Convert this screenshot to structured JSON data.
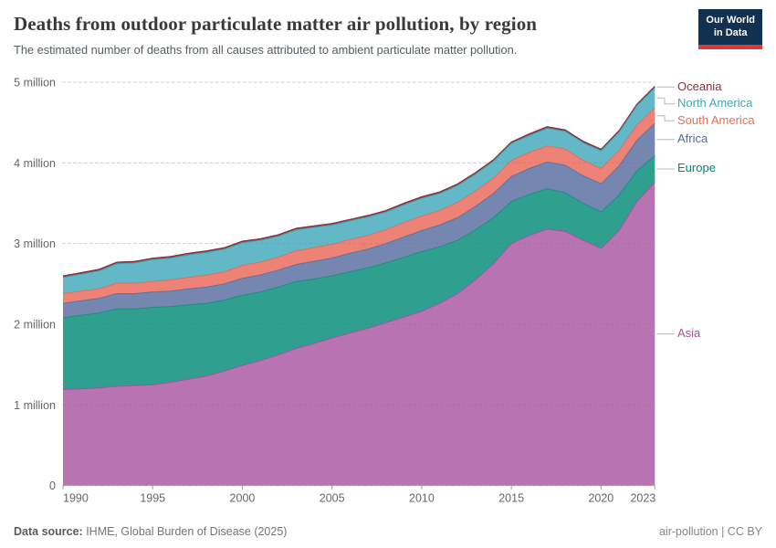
{
  "header": {
    "title": "Deaths from outdoor particulate matter air pollution, by region",
    "subtitle": "The estimated number of deaths from all causes attributed to ambient particulate matter pollution.",
    "logo": {
      "line1": "Our World",
      "line2": "in Data",
      "bg_color": "#12304f",
      "accent_color": "#d93a32"
    }
  },
  "footer": {
    "source_label": "Data source:",
    "source_text": " IHME, Global Burden of Disease (2025)",
    "note_right": "air-pollution | CC BY"
  },
  "chart_data": {
    "type": "area",
    "stacked": true,
    "title": "Deaths from outdoor particulate matter air pollution, by region",
    "unit": "deaths per year (millions)",
    "xlabel": "",
    "ylabel": "",
    "ylim": [
      0,
      5
    ],
    "grid": "dashed horizontal",
    "legend_position": "right",
    "x": [
      1990,
      1991,
      1992,
      1993,
      1994,
      1995,
      1996,
      1997,
      1998,
      1999,
      2000,
      2001,
      2002,
      2003,
      2004,
      2005,
      2006,
      2007,
      2008,
      2009,
      2010,
      2011,
      2012,
      2013,
      2014,
      2015,
      2016,
      2017,
      2018,
      2019,
      2020,
      2021,
      2022,
      2023
    ],
    "xticks": [
      "1990",
      "1995",
      "2000",
      "2005",
      "2010",
      "2015",
      "2020",
      "2023"
    ],
    "yticks": [
      {
        "value": 0,
        "label": "0"
      },
      {
        "value": 1,
        "label": "1 million"
      },
      {
        "value": 2,
        "label": "2 million"
      },
      {
        "value": 3,
        "label": "3 million"
      },
      {
        "value": 4,
        "label": "4 million"
      },
      {
        "value": 5,
        "label": "5 million"
      }
    ],
    "series": [
      {
        "name": "Asia",
        "fill": "#b873b2",
        "line": "#a2559c",
        "label_color": "#a2559c",
        "values": [
          1.19,
          1.2,
          1.21,
          1.23,
          1.24,
          1.25,
          1.28,
          1.32,
          1.36,
          1.42,
          1.49,
          1.55,
          1.62,
          1.7,
          1.76,
          1.83,
          1.89,
          1.95,
          2.02,
          2.09,
          2.16,
          2.26,
          2.38,
          2.55,
          2.75,
          3.0,
          3.1,
          3.18,
          3.15,
          3.04,
          2.94,
          3.16,
          3.52,
          3.76
        ]
      },
      {
        "name": "Europe",
        "fill": "#2fa08f",
        "line": "#1d8f80",
        "label_color": "#00847e",
        "values": [
          0.89,
          0.91,
          0.93,
          0.96,
          0.95,
          0.96,
          0.94,
          0.92,
          0.9,
          0.88,
          0.87,
          0.85,
          0.84,
          0.83,
          0.8,
          0.77,
          0.76,
          0.75,
          0.74,
          0.74,
          0.74,
          0.7,
          0.66,
          0.62,
          0.57,
          0.52,
          0.51,
          0.5,
          0.48,
          0.46,
          0.45,
          0.44,
          0.38,
          0.33
        ]
      },
      {
        "name": "Africa",
        "fill": "#7587b0",
        "line": "#5c729f",
        "label_color": "#4c6a9c",
        "values": [
          0.18,
          0.18,
          0.18,
          0.19,
          0.19,
          0.19,
          0.19,
          0.2,
          0.2,
          0.2,
          0.21,
          0.21,
          0.21,
          0.21,
          0.22,
          0.22,
          0.23,
          0.23,
          0.24,
          0.25,
          0.26,
          0.27,
          0.28,
          0.29,
          0.3,
          0.31,
          0.32,
          0.33,
          0.34,
          0.34,
          0.35,
          0.36,
          0.38,
          0.4
        ]
      },
      {
        "name": "South America",
        "fill": "#ec8376",
        "line": "#e06e5e",
        "label_color": "#e56e5a",
        "values": [
          0.12,
          0.12,
          0.12,
          0.13,
          0.13,
          0.13,
          0.14,
          0.14,
          0.15,
          0.15,
          0.16,
          0.16,
          0.16,
          0.17,
          0.17,
          0.17,
          0.17,
          0.17,
          0.17,
          0.18,
          0.18,
          0.18,
          0.19,
          0.19,
          0.19,
          0.2,
          0.2,
          0.2,
          0.2,
          0.19,
          0.19,
          0.19,
          0.19,
          0.19
        ]
      },
      {
        "name": "North America",
        "fill": "#62b8c6",
        "line": "#3fa3b4",
        "label_color": "#44a5b7",
        "values": [
          0.2,
          0.21,
          0.22,
          0.24,
          0.25,
          0.27,
          0.27,
          0.28,
          0.28,
          0.28,
          0.28,
          0.27,
          0.26,
          0.26,
          0.25,
          0.24,
          0.23,
          0.23,
          0.22,
          0.22,
          0.22,
          0.21,
          0.21,
          0.21,
          0.21,
          0.21,
          0.21,
          0.22,
          0.22,
          0.22,
          0.22,
          0.23,
          0.24,
          0.25
        ]
      },
      {
        "name": "Oceania",
        "fill": "#9c4048",
        "line": "#7e2d35",
        "label_color": "#883039",
        "values": [
          0.02,
          0.02,
          0.02,
          0.02,
          0.02,
          0.02,
          0.02,
          0.02,
          0.02,
          0.02,
          0.02,
          0.02,
          0.02,
          0.02,
          0.02,
          0.02,
          0.02,
          0.02,
          0.02,
          0.02,
          0.02,
          0.02,
          0.02,
          0.02,
          0.02,
          0.02,
          0.02,
          0.02,
          0.02,
          0.02,
          0.02,
          0.02,
          0.02,
          0.02
        ]
      }
    ]
  }
}
